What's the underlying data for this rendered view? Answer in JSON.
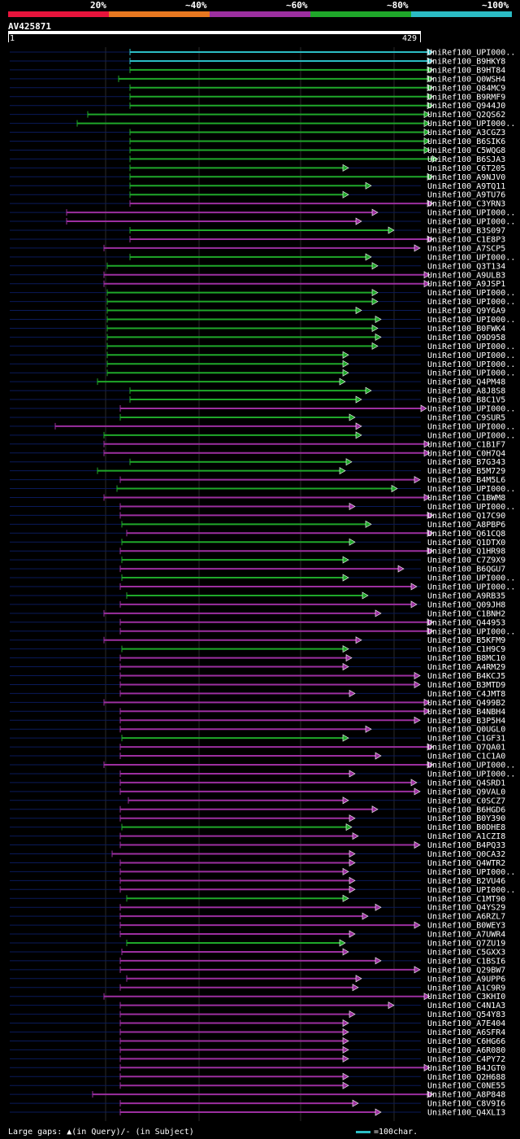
{
  "legend": {
    "labels": [
      "20%",
      "~40%",
      "~60%",
      "~80%",
      "~100%"
    ],
    "colors": [
      "#e8143c",
      "#e87820",
      "#9c2fa0",
      "#1fa82a",
      "#2bbcc4"
    ]
  },
  "query": {
    "name": "AV425871",
    "start": "1",
    "end": "429"
  },
  "footer": {
    "gaps": "Large gaps: ▲(in Query)/- (in Subject)",
    "scale": "=100char."
  },
  "chart_data": {
    "type": "alignment-hits",
    "query_length": 429,
    "hits": [
      {
        "name": "UniRef100_UPI000..",
        "start": 160,
        "end": 532,
        "color": "#2bbcc4"
      },
      {
        "name": "UniRef100_B9HKY8",
        "start": 160,
        "end": 532,
        "color": "#2bbcc4"
      },
      {
        "name": "UniRef100_B9HT84",
        "start": 160,
        "end": 532,
        "color": "#1fa82a"
      },
      {
        "name": "UniRef100_Q0WSH4",
        "start": 146,
        "end": 532,
        "color": "#1fa82a"
      },
      {
        "name": "UniRef100_Q84MC9",
        "start": 160,
        "end": 532,
        "color": "#1fa82a"
      },
      {
        "name": "UniRef100_B9RMF9",
        "start": 160,
        "end": 532,
        "color": "#1fa82a"
      },
      {
        "name": "UniRef100_Q944J0",
        "start": 160,
        "end": 532,
        "color": "#1fa82a"
      },
      {
        "name": "UniRef100_Q2QS62",
        "start": 108,
        "end": 528,
        "color": "#1fa82a"
      },
      {
        "name": "UniRef100_UPI000..",
        "start": 95,
        "end": 528,
        "color": "#1fa82a"
      },
      {
        "name": "UniRef100_A3CGZ3",
        "start": 160,
        "end": 528,
        "color": "#1fa82a"
      },
      {
        "name": "UniRef100_B6SIK6",
        "start": 160,
        "end": 528,
        "color": "#1fa82a"
      },
      {
        "name": "UniRef100_C5WQG8",
        "start": 160,
        "end": 528,
        "color": "#1fa82a"
      },
      {
        "name": "UniRef100_B6SJA3",
        "start": 160,
        "end": 538,
        "color": "#1fa82a"
      },
      {
        "name": "UniRef100_C6T205",
        "start": 160,
        "end": 428,
        "color": "#1fa82a"
      },
      {
        "name": "UniRef100_A9NJV0",
        "start": 160,
        "end": 532,
        "color": "#1fa82a"
      },
      {
        "name": "UniRef100_A9TQ11",
        "start": 160,
        "end": 456,
        "color": "#1fa82a"
      },
      {
        "name": "UniRef100_A9TU76",
        "start": 160,
        "end": 428,
        "color": "#1fa82a"
      },
      {
        "name": "UniRef100_C3YRN3",
        "start": 160,
        "end": 532,
        "color": "#9c2fa0"
      },
      {
        "name": "UniRef100_UPI000..",
        "start": 82,
        "end": 464,
        "color": "#9c2fa0"
      },
      {
        "name": "UniRef100_UPI000..",
        "start": 82,
        "end": 444,
        "color": "#9c2fa0"
      },
      {
        "name": "UniRef100_B3S097",
        "start": 160,
        "end": 484,
        "color": "#1fa82a"
      },
      {
        "name": "UniRef100_C1E8P3",
        "start": 160,
        "end": 532,
        "color": "#9c2fa0"
      },
      {
        "name": "UniRef100_A7SCP5",
        "start": 128,
        "end": 516,
        "color": "#9c2fa0"
      },
      {
        "name": "UniRef100_UPI000..",
        "start": 160,
        "end": 456,
        "color": "#1fa82a"
      },
      {
        "name": "UniRef100_Q3T134",
        "start": 132,
        "end": 464,
        "color": "#1fa82a"
      },
      {
        "name": "UniRef100_A9ULB3",
        "start": 128,
        "end": 528,
        "color": "#9c2fa0"
      },
      {
        "name": "UniRef100_A9JSP1",
        "start": 128,
        "end": 528,
        "color": "#9c2fa0"
      },
      {
        "name": "UniRef100_UPI000..",
        "start": 132,
        "end": 464,
        "color": "#1fa82a"
      },
      {
        "name": "UniRef100_UPI000..",
        "start": 132,
        "end": 464,
        "color": "#1fa82a"
      },
      {
        "name": "UniRef100_Q9Y6A9",
        "start": 132,
        "end": 444,
        "color": "#1fa82a"
      },
      {
        "name": "UniRef100_UPI000..",
        "start": 132,
        "end": 468,
        "color": "#1fa82a"
      },
      {
        "name": "UniRef100_B0FWK4",
        "start": 132,
        "end": 464,
        "color": "#1fa82a"
      },
      {
        "name": "UniRef100_Q9D958",
        "start": 132,
        "end": 468,
        "color": "#1fa82a"
      },
      {
        "name": "UniRef100_UPI000..",
        "start": 132,
        "end": 464,
        "color": "#1fa82a"
      },
      {
        "name": "UniRef100_UPI000..",
        "start": 132,
        "end": 428,
        "color": "#1fa82a"
      },
      {
        "name": "UniRef100_UPI000..",
        "start": 132,
        "end": 428,
        "color": "#1fa82a"
      },
      {
        "name": "UniRef100_UPI000..",
        "start": 132,
        "end": 428,
        "color": "#1fa82a"
      },
      {
        "name": "UniRef100_Q4PM48",
        "start": 120,
        "end": 424,
        "color": "#1fa82a"
      },
      {
        "name": "UniRef100_A8J8S8",
        "start": 160,
        "end": 456,
        "color": "#1fa82a"
      },
      {
        "name": "UniRef100_B8C1V5",
        "start": 160,
        "end": 444,
        "color": "#1fa82a"
      },
      {
        "name": "UniRef100_UPI000..",
        "start": 148,
        "end": 524,
        "color": "#9c2fa0"
      },
      {
        "name": "UniRef100_C9SUR5",
        "start": 148,
        "end": 436,
        "color": "#1fa82a"
      },
      {
        "name": "UniRef100_UPI000..",
        "start": 68,
        "end": 444,
        "color": "#9c2fa0"
      },
      {
        "name": "UniRef100_UPI000..",
        "start": 128,
        "end": 444,
        "color": "#1fa82a"
      },
      {
        "name": "UniRef100_C1B1F7",
        "start": 128,
        "end": 528,
        "color": "#9c2fa0"
      },
      {
        "name": "UniRef100_C0H7Q4",
        "start": 128,
        "end": 528,
        "color": "#9c2fa0"
      },
      {
        "name": "UniRef100_B7G343",
        "start": 160,
        "end": 432,
        "color": "#1fa82a"
      },
      {
        "name": "UniRef100_B5M729",
        "start": 120,
        "end": 424,
        "color": "#1fa82a"
      },
      {
        "name": "UniRef100_B4M5L6",
        "start": 148,
        "end": 516,
        "color": "#9c2fa0"
      },
      {
        "name": "UniRef100_UPI000..",
        "start": 144,
        "end": 488,
        "color": "#1fa82a"
      },
      {
        "name": "UniRef100_C1BWM8",
        "start": 128,
        "end": 528,
        "color": "#9c2fa0"
      },
      {
        "name": "UniRef100_UPI000..",
        "start": 148,
        "end": 436,
        "color": "#9c2fa0"
      },
      {
        "name": "UniRef100_Q17C90",
        "start": 148,
        "end": 532,
        "color": "#9c2fa0"
      },
      {
        "name": "UniRef100_A8PBP6",
        "start": 150,
        "end": 456,
        "color": "#1fa82a"
      },
      {
        "name": "UniRef100_Q61CQ8",
        "start": 156,
        "end": 532,
        "color": "#9c2fa0"
      },
      {
        "name": "UniRef100_Q1DTX0",
        "start": 150,
        "end": 436,
        "color": "#1fa82a"
      },
      {
        "name": "UniRef100_Q1HR98",
        "start": 148,
        "end": 532,
        "color": "#9c2fa0"
      },
      {
        "name": "UniRef100_C7Z9X9",
        "start": 150,
        "end": 428,
        "color": "#1fa82a"
      },
      {
        "name": "UniRef100_B6QGU7",
        "start": 148,
        "end": 496,
        "color": "#9c2fa0"
      },
      {
        "name": "UniRef100_UPI000..",
        "start": 150,
        "end": 428,
        "color": "#1fa82a"
      },
      {
        "name": "UniRef100_UPI000..",
        "start": 148,
        "end": 512,
        "color": "#9c2fa0"
      },
      {
        "name": "UniRef100_A9RB35",
        "start": 156,
        "end": 452,
        "color": "#1fa82a"
      },
      {
        "name": "UniRef100_Q09JH8",
        "start": 148,
        "end": 512,
        "color": "#9c2fa0"
      },
      {
        "name": "UniRef100_C1BNH2",
        "start": 128,
        "end": 468,
        "color": "#9c2fa0"
      },
      {
        "name": "UniRef100_Q44953",
        "start": 148,
        "end": 532,
        "color": "#9c2fa0"
      },
      {
        "name": "UniRef100_UPI000..",
        "start": 148,
        "end": 532,
        "color": "#9c2fa0"
      },
      {
        "name": "UniRef100_B5KFM9",
        "start": 128,
        "end": 444,
        "color": "#9c2fa0"
      },
      {
        "name": "UniRef100_C1H9C9",
        "start": 150,
        "end": 428,
        "color": "#1fa82a"
      },
      {
        "name": "UniRef100_B8MC10",
        "start": 148,
        "end": 432,
        "color": "#9c2fa0"
      },
      {
        "name": "UniRef100_A4RM29",
        "start": 148,
        "end": 428,
        "color": "#9c2fa0"
      },
      {
        "name": "UniRef100_B4KCJ5",
        "start": 148,
        "end": 516,
        "color": "#9c2fa0"
      },
      {
        "name": "UniRef100_B3MTD9",
        "start": 148,
        "end": 516,
        "color": "#9c2fa0"
      },
      {
        "name": "UniRef100_C4JMT8",
        "start": 148,
        "end": 436,
        "color": "#9c2fa0"
      },
      {
        "name": "UniRef100_Q499B2",
        "start": 128,
        "end": 528,
        "color": "#9c2fa0"
      },
      {
        "name": "UniRef100_B4NBH4",
        "start": 148,
        "end": 528,
        "color": "#9c2fa0"
      },
      {
        "name": "UniRef100_B3P5H4",
        "start": 148,
        "end": 516,
        "color": "#9c2fa0"
      },
      {
        "name": "UniRef100_Q0UGL0",
        "start": 148,
        "end": 456,
        "color": "#9c2fa0"
      },
      {
        "name": "UniRef100_C1GF31",
        "start": 150,
        "end": 428,
        "color": "#1fa82a"
      },
      {
        "name": "UniRef100_Q7QA01",
        "start": 148,
        "end": 532,
        "color": "#9c2fa0"
      },
      {
        "name": "UniRef100_C1C1A0",
        "start": 148,
        "end": 468,
        "color": "#9c2fa0"
      },
      {
        "name": "UniRef100_UPI000..",
        "start": 128,
        "end": 532,
        "color": "#9c2fa0"
      },
      {
        "name": "UniRef100_UPI000..",
        "start": 148,
        "end": 436,
        "color": "#9c2fa0"
      },
      {
        "name": "UniRef100_Q4SRD1",
        "start": 148,
        "end": 512,
        "color": "#9c2fa0"
      },
      {
        "name": "UniRef100_Q9VAL0",
        "start": 148,
        "end": 516,
        "color": "#9c2fa0"
      },
      {
        "name": "UniRef100_C0SCZ7",
        "start": 158,
        "end": 428,
        "color": "#9c2fa0"
      },
      {
        "name": "UniRef100_B6HGD6",
        "start": 148,
        "end": 464,
        "color": "#9c2fa0"
      },
      {
        "name": "UniRef100_B0Y390",
        "start": 148,
        "end": 436,
        "color": "#9c2fa0"
      },
      {
        "name": "UniRef100_B0DHE8",
        "start": 150,
        "end": 432,
        "color": "#1fa82a"
      },
      {
        "name": "UniRef100_A1CZI8",
        "start": 148,
        "end": 440,
        "color": "#9c2fa0"
      },
      {
        "name": "UniRef100_B4PQ33",
        "start": 148,
        "end": 516,
        "color": "#9c2fa0"
      },
      {
        "name": "UniRef100_Q0CA32",
        "start": 138,
        "end": 436,
        "color": "#9c2fa0"
      },
      {
        "name": "UniRef100_Q4WTR2",
        "start": 148,
        "end": 436,
        "color": "#9c2fa0"
      },
      {
        "name": "UniRef100_UPI000..",
        "start": 148,
        "end": 428,
        "color": "#9c2fa0"
      },
      {
        "name": "UniRef100_B2VU46",
        "start": 148,
        "end": 436,
        "color": "#9c2fa0"
      },
      {
        "name": "UniRef100_UPI000..",
        "start": 148,
        "end": 436,
        "color": "#9c2fa0"
      },
      {
        "name": "UniRef100_C1MT90",
        "start": 156,
        "end": 428,
        "color": "#1fa82a"
      },
      {
        "name": "UniRef100_Q4YS29",
        "start": 148,
        "end": 468,
        "color": "#9c2fa0"
      },
      {
        "name": "UniRef100_A6RZL7",
        "start": 148,
        "end": 452,
        "color": "#9c2fa0"
      },
      {
        "name": "UniRef100_B0WEY3",
        "start": 148,
        "end": 516,
        "color": "#9c2fa0"
      },
      {
        "name": "UniRef100_A7UWR4",
        "start": 148,
        "end": 436,
        "color": "#9c2fa0"
      },
      {
        "name": "UniRef100_Q7ZU19",
        "start": 156,
        "end": 424,
        "color": "#1fa82a"
      },
      {
        "name": "UniRef100_C5GXX3",
        "start": 150,
        "end": 428,
        "color": "#9c2fa0"
      },
      {
        "name": "UniRef100_C1BSI6",
        "start": 148,
        "end": 468,
        "color": "#9c2fa0"
      },
      {
        "name": "UniRef100_Q29BW7",
        "start": 148,
        "end": 516,
        "color": "#9c2fa0"
      },
      {
        "name": "UniRef100_A9UPP6",
        "start": 156,
        "end": 444,
        "color": "#9c2fa0"
      },
      {
        "name": "UniRef100_A1C9R9",
        "start": 148,
        "end": 440,
        "color": "#9c2fa0"
      },
      {
        "name": "UniRef100_C3KHI0",
        "start": 128,
        "end": 528,
        "color": "#9c2fa0"
      },
      {
        "name": "UniRef100_C4N1A3",
        "start": 148,
        "end": 484,
        "color": "#9c2fa0"
      },
      {
        "name": "UniRef100_Q54Y83",
        "start": 148,
        "end": 436,
        "color": "#9c2fa0"
      },
      {
        "name": "UniRef100_A7E404",
        "start": 148,
        "end": 428,
        "color": "#9c2fa0"
      },
      {
        "name": "UniRef100_A6SFR4",
        "start": 148,
        "end": 428,
        "color": "#9c2fa0"
      },
      {
        "name": "UniRef100_C6HG66",
        "start": 148,
        "end": 428,
        "color": "#9c2fa0"
      },
      {
        "name": "UniRef100_A6R080",
        "start": 148,
        "end": 428,
        "color": "#9c2fa0"
      },
      {
        "name": "UniRef100_C4PY72",
        "start": 148,
        "end": 428,
        "color": "#9c2fa0"
      },
      {
        "name": "UniRef100_B4JGT0",
        "start": 148,
        "end": 528,
        "color": "#9c2fa0"
      },
      {
        "name": "UniRef100_Q2H688",
        "start": 148,
        "end": 428,
        "color": "#9c2fa0"
      },
      {
        "name": "UniRef100_C0NE55",
        "start": 148,
        "end": 428,
        "color": "#9c2fa0"
      },
      {
        "name": "UniRef100_A8P848",
        "start": 114,
        "end": 532,
        "color": "#9c2fa0"
      },
      {
        "name": "UniRef100_C8V9I6",
        "start": 148,
        "end": 440,
        "color": "#9c2fa0"
      },
      {
        "name": "UniRef100_Q4XLI3",
        "start": 148,
        "end": 468,
        "color": "#9c2fa0"
      }
    ]
  }
}
